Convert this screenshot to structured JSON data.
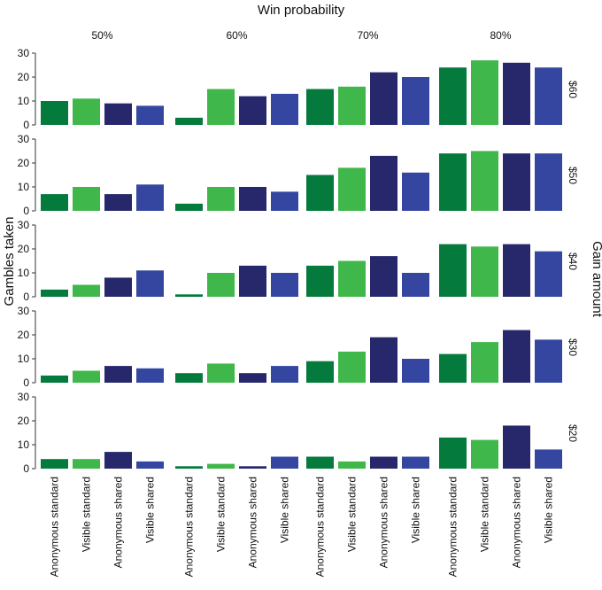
{
  "chart_data": {
    "type": "bar",
    "title": "Win probability",
    "ylabel": "Gambles taken",
    "right_label": "Gain amount",
    "ylim": [
      0,
      30
    ],
    "yticks": [
      0,
      10,
      20,
      30
    ],
    "columns": [
      "50%",
      "60%",
      "70%",
      "80%"
    ],
    "rows": [
      "$60",
      "$50",
      "$40",
      "$30",
      "$20"
    ],
    "categories": [
      "Anonymous standard",
      "Visible standard",
      "Anonymous shared",
      "Visible shared"
    ],
    "colors": [
      "#047a3c",
      "#40b74a",
      "#27286b",
      "#3446a0"
    ],
    "values": [
      [
        [
          10,
          11,
          9,
          8
        ],
        [
          3,
          15,
          12,
          13
        ],
        [
          15,
          16,
          22,
          20
        ],
        [
          24,
          27,
          26,
          24
        ]
      ],
      [
        [
          7,
          10,
          7,
          11
        ],
        [
          3,
          10,
          10,
          8
        ],
        [
          15,
          18,
          23,
          16
        ],
        [
          24,
          25,
          24,
          24
        ]
      ],
      [
        [
          3,
          5,
          8,
          11
        ],
        [
          1,
          10,
          13,
          10
        ],
        [
          13,
          15,
          17,
          10
        ],
        [
          22,
          21,
          22,
          19
        ]
      ],
      [
        [
          3,
          5,
          7,
          6
        ],
        [
          4,
          8,
          4,
          7
        ],
        [
          9,
          13,
          19,
          10
        ],
        [
          12,
          17,
          22,
          18
        ]
      ],
      [
        [
          4,
          4,
          7,
          3
        ],
        [
          1,
          2,
          1,
          5
        ],
        [
          5,
          3,
          5,
          5
        ],
        [
          13,
          12,
          18,
          8
        ]
      ]
    ]
  }
}
